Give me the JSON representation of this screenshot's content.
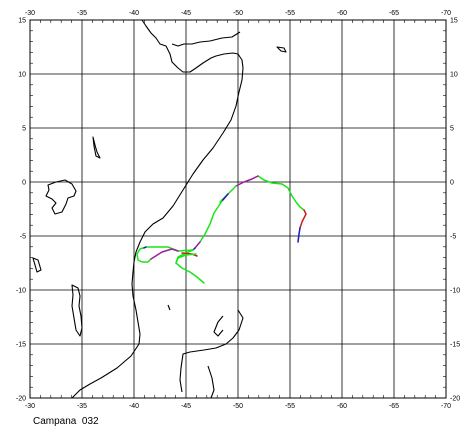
{
  "caption": "Campana  032",
  "map": {
    "x_ticks": [
      "-30",
      "-35",
      "-40",
      "-45",
      "-50",
      "-55",
      "-60",
      "-65",
      "-70"
    ],
    "y_ticks": [
      "15",
      "10",
      "5",
      "0",
      "-5",
      "-10",
      "-15",
      "-20"
    ],
    "x_range": [
      -30,
      -70
    ],
    "y_range": [
      -20,
      15
    ],
    "grid": true,
    "coastline_color": "#000000",
    "track_colors": {
      "green": "#19e619",
      "purple": "#9b1fa0",
      "blue": "#1c1cb4",
      "red": "#c81e1e"
    }
  }
}
